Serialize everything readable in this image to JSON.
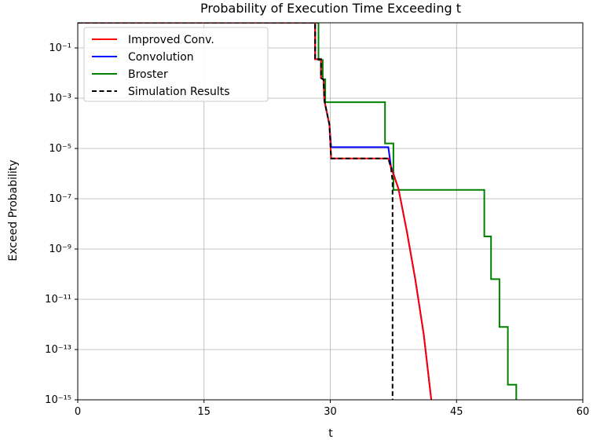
{
  "chart_data": {
    "type": "line",
    "title": "Probability of Execution Time Exceeding t",
    "xlabel": "t",
    "ylabel": "Exceed Probability",
    "xlim": [
      0,
      60
    ],
    "ylim_exp": [
      -15,
      0
    ],
    "y_scale": "log",
    "x_ticks": [
      0,
      15,
      30,
      45,
      60
    ],
    "y_tick_exponents": [
      -1,
      -3,
      -5,
      -7,
      -9,
      -11,
      -13,
      -15
    ],
    "y_tick_labels": [
      "10⁻¹",
      "10⁻³",
      "10⁻⁵",
      "10⁻⁷",
      "10⁻⁹",
      "10⁻¹¹",
      "10⁻¹³",
      "10⁻¹⁵"
    ],
    "grid": true,
    "legend_position": "top-left",
    "series": [
      {
        "name": "Broster",
        "color": "#008000",
        "dash": "solid",
        "points": [
          [
            0,
            0
          ],
          [
            28.6,
            0
          ],
          [
            28.6,
            -1.48
          ],
          [
            29.1,
            -1.48
          ],
          [
            29.1,
            -2.25
          ],
          [
            29.4,
            -2.25
          ],
          [
            29.4,
            -3.16
          ],
          [
            36.5,
            -3.16
          ],
          [
            36.5,
            -4.8
          ],
          [
            37.5,
            -4.8
          ],
          [
            37.5,
            -6.65
          ],
          [
            48.3,
            -6.65
          ],
          [
            48.3,
            -8.5
          ],
          [
            49.1,
            -8.5
          ],
          [
            49.1,
            -10.2
          ],
          [
            50.1,
            -10.2
          ],
          [
            50.1,
            -12.1
          ],
          [
            51.1,
            -12.1
          ],
          [
            51.1,
            -14.4
          ],
          [
            52.1,
            -14.4
          ],
          [
            52.1,
            -15
          ]
        ]
      },
      {
        "name": "Convolution",
        "color": "#0000ff",
        "dash": "solid",
        "points": [
          [
            0,
            0
          ],
          [
            28.2,
            0
          ],
          [
            28.2,
            -1.45
          ],
          [
            28.9,
            -1.45
          ],
          [
            28.9,
            -2.2
          ],
          [
            29.2,
            -2.25
          ],
          [
            29.3,
            -3.1
          ],
          [
            29.9,
            -4.05
          ],
          [
            30.1,
            -4.95
          ],
          [
            36.9,
            -4.95
          ],
          [
            37.2,
            -5.7
          ],
          [
            38.1,
            -6.6
          ],
          [
            39.1,
            -8.3
          ],
          [
            40.1,
            -10.2
          ],
          [
            41.1,
            -12.4
          ],
          [
            42,
            -15
          ]
        ]
      },
      {
        "name": "Improved Conv.",
        "color": "#ff0000",
        "dash": "solid",
        "points": [
          [
            0,
            0
          ],
          [
            28.2,
            0
          ],
          [
            28.2,
            -1.45
          ],
          [
            28.9,
            -1.45
          ],
          [
            28.9,
            -2.2
          ],
          [
            29.2,
            -2.25
          ],
          [
            29.3,
            -3.1
          ],
          [
            29.9,
            -4.05
          ],
          [
            30.1,
            -5.4
          ],
          [
            36.9,
            -5.4
          ],
          [
            37.2,
            -5.75
          ],
          [
            38.1,
            -6.6
          ],
          [
            39.1,
            -8.3
          ],
          [
            40.1,
            -10.2
          ],
          [
            41.1,
            -12.4
          ],
          [
            42,
            -15
          ]
        ]
      },
      {
        "name": "Simulation Results",
        "color": "#000000",
        "dash": "dashed",
        "points": [
          [
            0,
            0
          ],
          [
            28.2,
            0
          ],
          [
            28.2,
            -1.45
          ],
          [
            28.9,
            -1.45
          ],
          [
            28.9,
            -2.2
          ],
          [
            29.2,
            -2.25
          ],
          [
            29.3,
            -3.1
          ],
          [
            29.9,
            -4.05
          ],
          [
            30.1,
            -5.4
          ],
          [
            36.9,
            -5.4
          ],
          [
            37.2,
            -5.75
          ],
          [
            37.4,
            -6.3
          ],
          [
            37.4,
            -15
          ]
        ]
      }
    ],
    "legend_order": [
      "Improved Conv.",
      "Convolution",
      "Broster",
      "Simulation Results"
    ]
  }
}
